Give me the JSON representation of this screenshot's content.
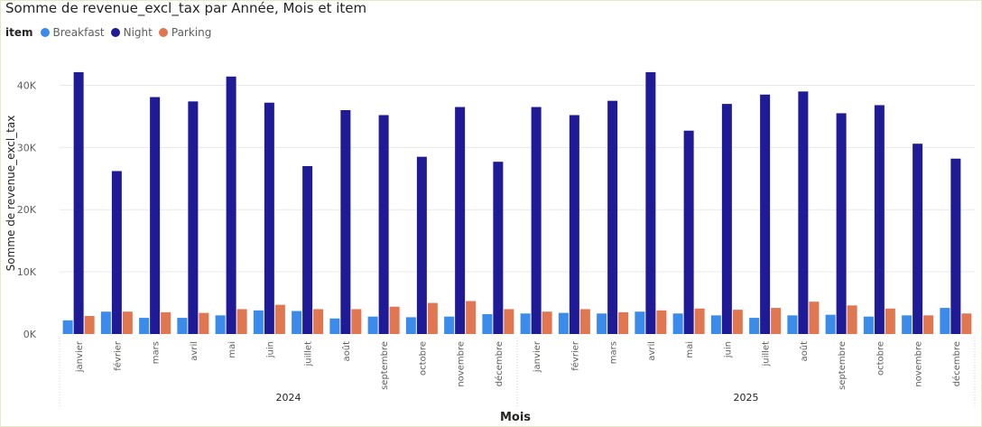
{
  "chart_data": {
    "type": "bar",
    "title": "Somme de revenue_excl_tax par Année, Mois et item",
    "xlabel": "Mois",
    "ylabel": "Somme de revenue_excl_tax",
    "ylim": [
      0,
      45000
    ],
    "yticks": [
      {
        "value": 0,
        "label": "0K"
      },
      {
        "value": 10000,
        "label": "10K"
      },
      {
        "value": 20000,
        "label": "20K"
      },
      {
        "value": 30000,
        "label": "30K"
      },
      {
        "value": 40000,
        "label": "40K"
      }
    ],
    "legend_title": "item",
    "legend_position": "top-left",
    "grid": true,
    "years": [
      "2024",
      "2025"
    ],
    "categories": [
      "janvier",
      "février",
      "mars",
      "avril",
      "mai",
      "juin",
      "juillet",
      "août",
      "septembre",
      "octobre",
      "novembre",
      "décembre",
      "janvier",
      "février",
      "mars",
      "avril",
      "mai",
      "juin",
      "juillet",
      "août",
      "septembre",
      "octobre",
      "novembre",
      "décembre"
    ],
    "series": [
      {
        "name": "Breakfast",
        "color": "#3b8bea",
        "values": [
          2200,
          3600,
          2600,
          2600,
          3000,
          3800,
          3700,
          2500,
          2800,
          2700,
          2800,
          3200,
          3300,
          3400,
          3300,
          3600,
          3300,
          3000,
          2600,
          3000,
          3100,
          2800,
          3000,
          4200
        ]
      },
      {
        "name": "Night",
        "color": "#1f1a96",
        "values": [
          42100,
          26200,
          38100,
          37400,
          41400,
          37200,
          27000,
          36000,
          35200,
          28500,
          36500,
          27700,
          36500,
          35200,
          37500,
          42100,
          32700,
          37000,
          38500,
          39000,
          35500,
          36800,
          30600,
          28200
        ]
      },
      {
        "name": "Parking",
        "color": "#e07750",
        "values": [
          2900,
          3600,
          3500,
          3400,
          4000,
          4700,
          4000,
          4000,
          4400,
          5000,
          5300,
          4000,
          3600,
          4000,
          3500,
          3800,
          4100,
          3900,
          4200,
          5200,
          4600,
          4100,
          3000,
          3300
        ]
      }
    ]
  }
}
